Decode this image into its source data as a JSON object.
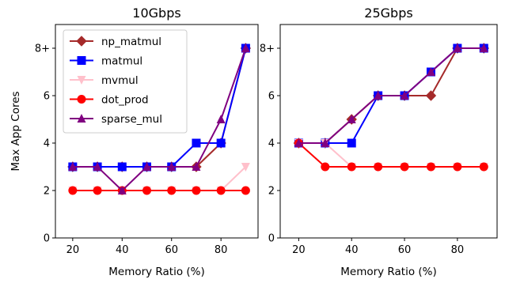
{
  "chart_data": [
    {
      "type": "line",
      "title": "10Gbps",
      "xlabel": "Memory Ratio (%)",
      "ylabel": "Max App Cores",
      "xlim": [
        13,
        95
      ],
      "ylim": [
        0,
        9
      ],
      "xticks": [
        20,
        40,
        60,
        80
      ],
      "xtick_labels": [
        "20",
        "40",
        "60",
        "80"
      ],
      "yticks": [
        0,
        2,
        4,
        6,
        8
      ],
      "ytick_labels": [
        "0",
        "2",
        "4",
        "6",
        "8+"
      ],
      "x": [
        20,
        30,
        40,
        50,
        60,
        70,
        80,
        90
      ],
      "legend": "top-left",
      "series": [
        {
          "name": "np_matmul",
          "color": "#a52a2a",
          "marker": "diamond",
          "values": [
            3,
            3,
            3,
            3,
            3,
            3,
            4,
            8
          ]
        },
        {
          "name": "matmul",
          "color": "#0000ff",
          "marker": "square",
          "values": [
            3,
            3,
            3,
            3,
            3,
            4,
            4,
            8
          ]
        },
        {
          "name": "mvmul",
          "color": "#ffc0cb",
          "marker": "triangle-down",
          "values": [
            2,
            2,
            2,
            2,
            2,
            2,
            2,
            3
          ]
        },
        {
          "name": "dot_prod",
          "color": "#ff0000",
          "marker": "circle",
          "values": [
            2,
            2,
            2,
            2,
            2,
            2,
            2,
            2
          ]
        },
        {
          "name": "sparse_mul",
          "color": "#800080",
          "marker": "triangle-up",
          "values": [
            3,
            3,
            2,
            3,
            3,
            3,
            5,
            8
          ]
        }
      ]
    },
    {
      "type": "line",
      "title": "25Gbps",
      "xlabel": "Memory Ratio (%)",
      "ylabel": "",
      "xlim": [
        13,
        95
      ],
      "ylim": [
        0,
        9
      ],
      "xticks": [
        20,
        40,
        60,
        80
      ],
      "xtick_labels": [
        "20",
        "40",
        "60",
        "80"
      ],
      "yticks": [
        0,
        2,
        4,
        6,
        8
      ],
      "ytick_labels": [
        "0",
        "2",
        "4",
        "6",
        "8+"
      ],
      "x": [
        20,
        30,
        40,
        50,
        60,
        70,
        80,
        90
      ],
      "series": [
        {
          "name": "np_matmul",
          "color": "#a52a2a",
          "marker": "diamond",
          "values": [
            4,
            4,
            5,
            6,
            6,
            6,
            8,
            8
          ]
        },
        {
          "name": "matmul",
          "color": "#0000ff",
          "marker": "square",
          "values": [
            4,
            4,
            4,
            6,
            6,
            7,
            8,
            8
          ]
        },
        {
          "name": "mvmul",
          "color": "#ffc0cb",
          "marker": "triangle-down",
          "values": [
            4,
            4,
            3,
            3,
            3,
            3,
            3,
            3
          ]
        },
        {
          "name": "dot_prod",
          "color": "#ff0000",
          "marker": "circle",
          "values": [
            4,
            3,
            3,
            3,
            3,
            3,
            3,
            3
          ]
        },
        {
          "name": "sparse_mul",
          "color": "#800080",
          "marker": "triangle-up",
          "values": [
            4,
            4,
            5,
            6,
            6,
            7,
            8,
            8
          ]
        }
      ]
    }
  ]
}
